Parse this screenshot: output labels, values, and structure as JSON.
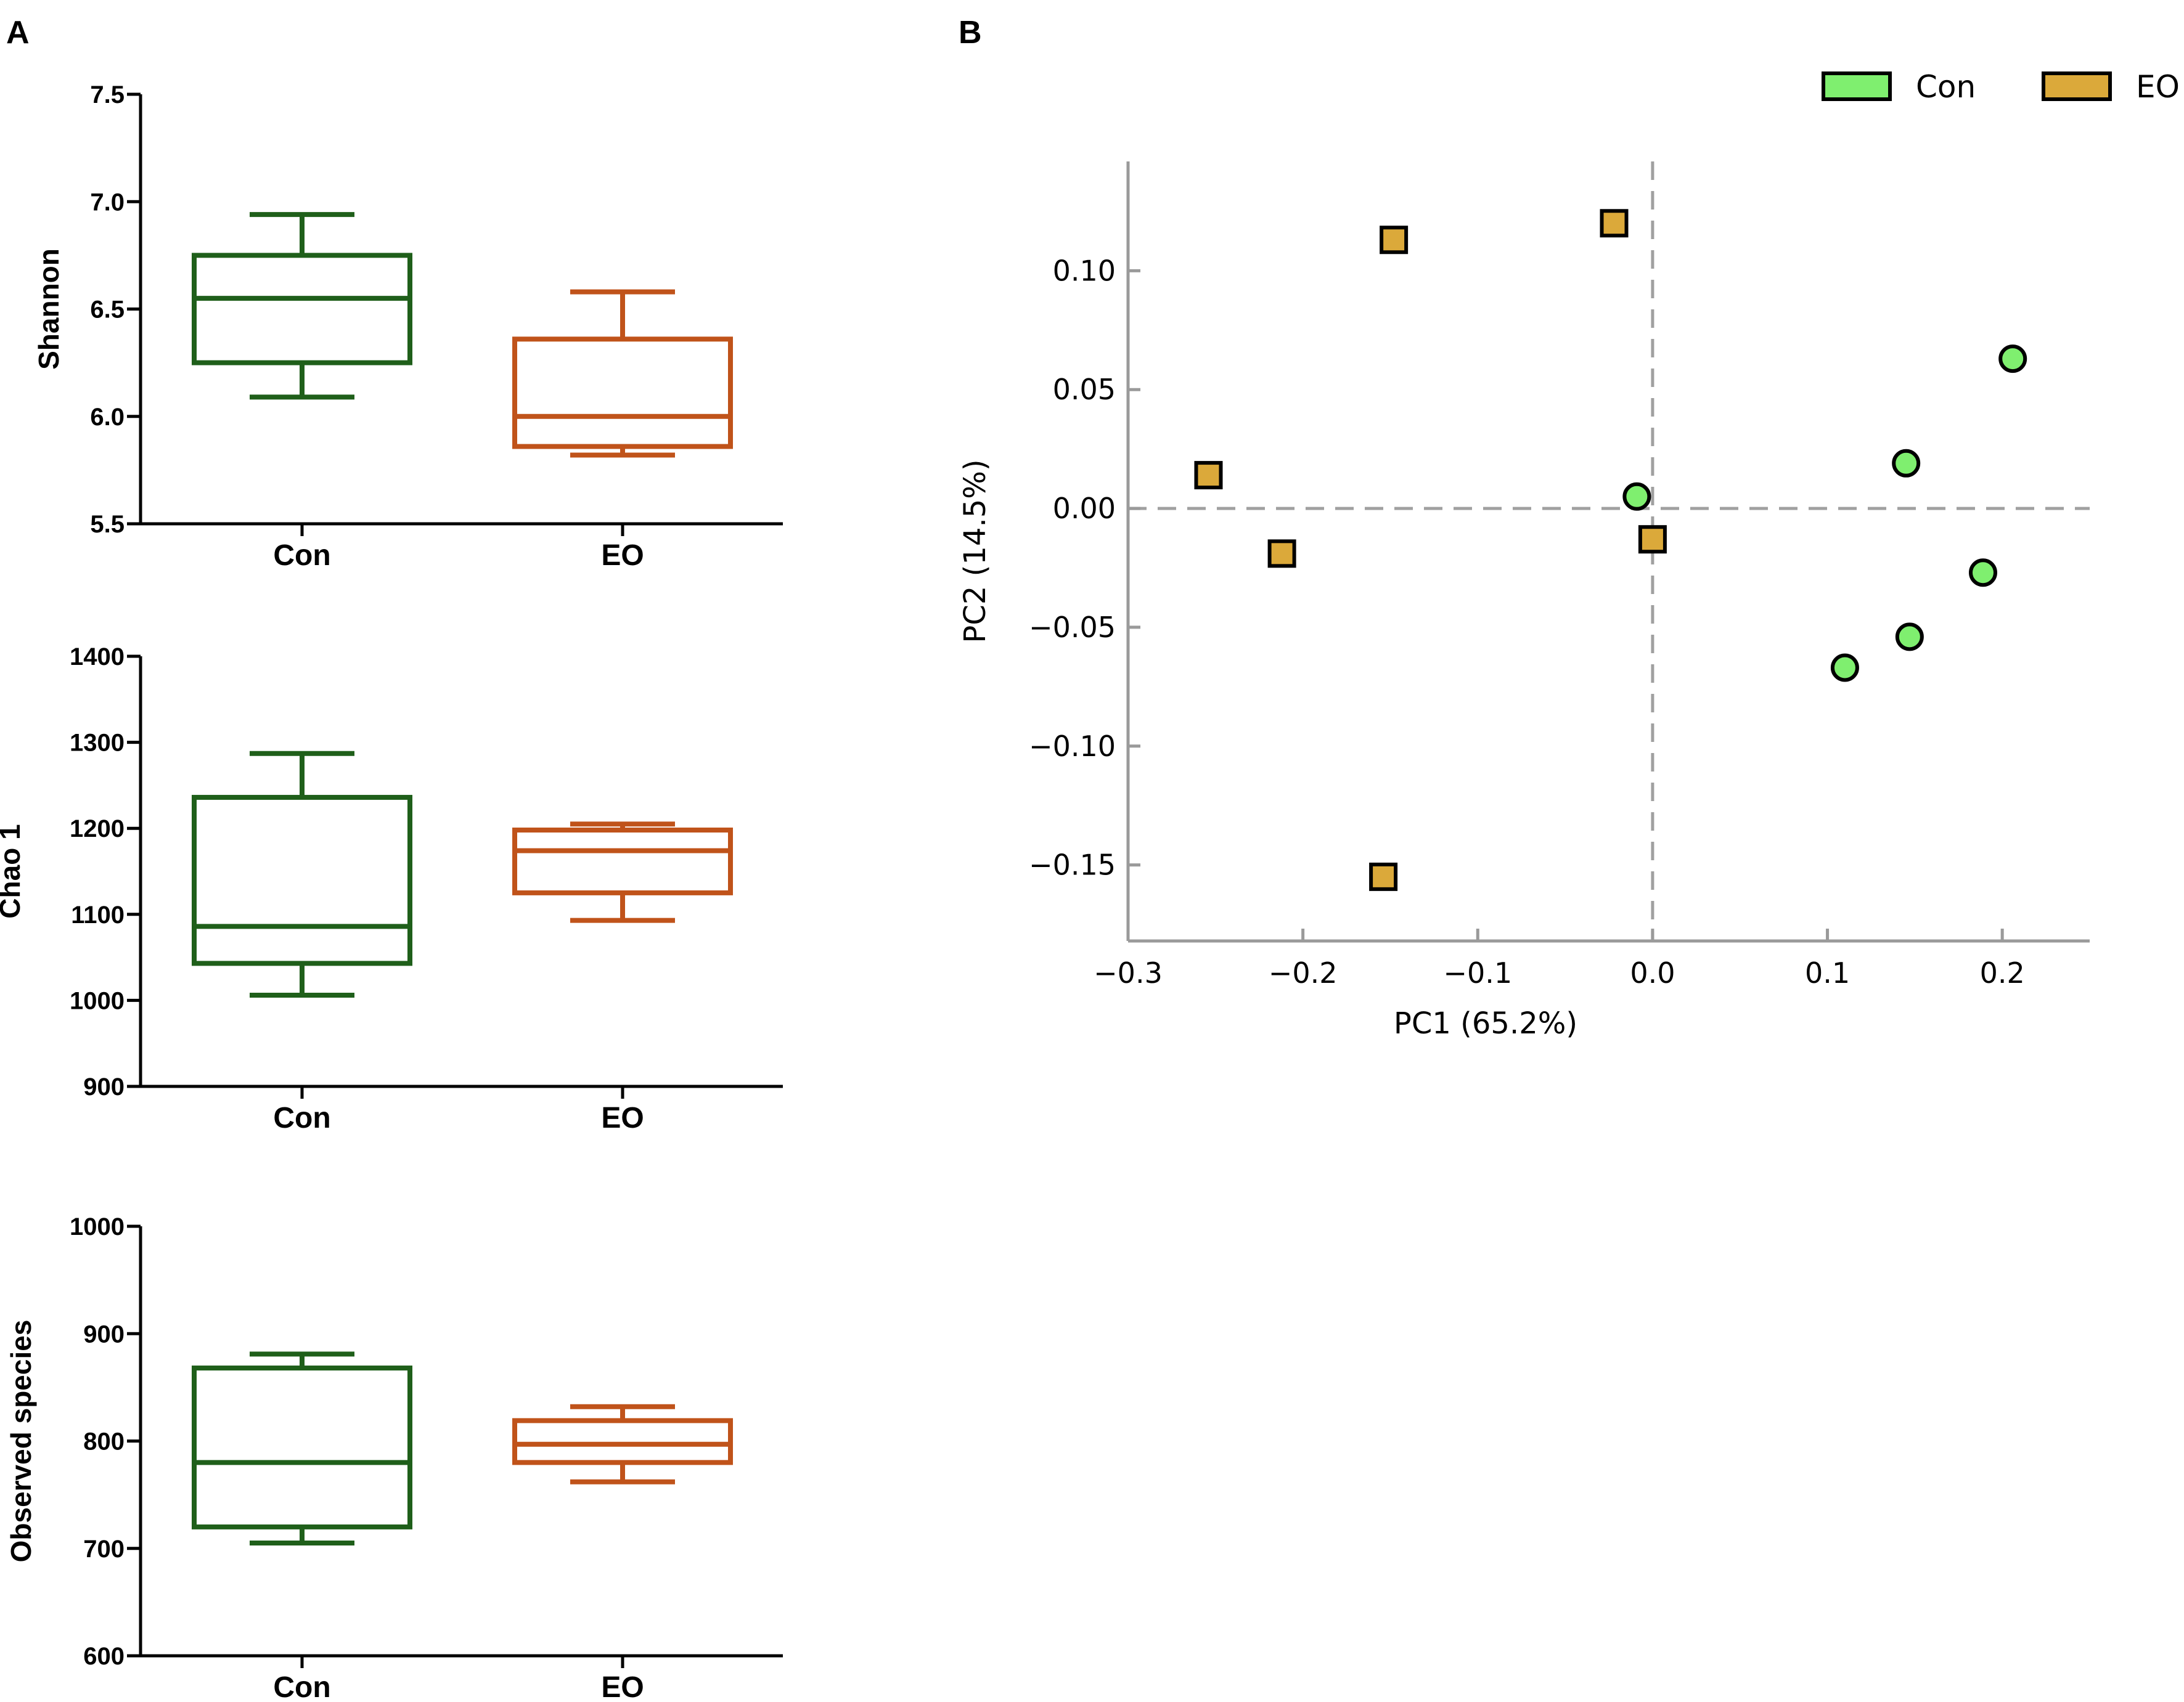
{
  "panels": {
    "a_label": "A",
    "b_label": "B"
  },
  "chart_data": [
    {
      "type": "box",
      "panel": "A",
      "ylabel": "Shannon",
      "categories": [
        "Con",
        "EO"
      ],
      "ylim": [
        5.5,
        7.5
      ],
      "yticks": [
        5.5,
        6.0,
        6.5,
        7.0,
        7.5
      ],
      "tick_labels": [
        "5.5",
        "6.0",
        "6.5",
        "7.0",
        "7.5"
      ],
      "boxes": [
        {
          "group": "Con",
          "min": 6.09,
          "q1": 6.25,
          "median": 6.55,
          "q3": 6.75,
          "max": 6.94,
          "color": "#1f5f1a"
        },
        {
          "group": "EO",
          "min": 5.82,
          "q1": 5.86,
          "median": 6.0,
          "q3": 6.36,
          "max": 6.58,
          "color": "#c0531a"
        }
      ]
    },
    {
      "type": "box",
      "panel": "A",
      "ylabel": "Chao 1",
      "categories": [
        "Con",
        "EO"
      ],
      "ylim": [
        900,
        1400
      ],
      "yticks": [
        900,
        1000,
        1100,
        1200,
        1300,
        1400
      ],
      "tick_labels": [
        "900",
        "1000",
        "1100",
        "1200",
        "1300",
        "1400"
      ],
      "boxes": [
        {
          "group": "Con",
          "min": 1006,
          "q1": 1043,
          "median": 1086,
          "q3": 1236,
          "max": 1287,
          "color": "#1f5f1a"
        },
        {
          "group": "EO",
          "min": 1093,
          "q1": 1125,
          "median": 1174,
          "q3": 1198,
          "max": 1205,
          "color": "#c0531a"
        }
      ]
    },
    {
      "type": "box",
      "panel": "A",
      "ylabel": "Observed species",
      "categories": [
        "Con",
        "EO"
      ],
      "ylim": [
        600,
        1000
      ],
      "yticks": [
        600,
        700,
        800,
        900,
        1000
      ],
      "tick_labels": [
        "600",
        "700",
        "800",
        "900",
        "1000"
      ],
      "boxes": [
        {
          "group": "Con",
          "min": 705,
          "q1": 720,
          "median": 780,
          "q3": 868,
          "max": 881,
          "color": "#1f5f1a"
        },
        {
          "group": "EO",
          "min": 762,
          "q1": 780,
          "median": 797,
          "q3": 819,
          "max": 832,
          "color": "#c0531a"
        }
      ]
    },
    {
      "type": "scatter",
      "panel": "B",
      "xlabel": "PC1 (65.2%)",
      "ylabel": "PC2 (14.5%)",
      "xlim": [
        -0.3,
        0.25
      ],
      "ylim": [
        -0.182,
        0.146
      ],
      "xticks": [
        -0.3,
        -0.2,
        -0.1,
        0.0,
        0.1,
        0.2
      ],
      "xtick_labels": [
        "−0.3",
        "−0.2",
        "−0.1",
        "0.0",
        "0.1",
        "0.2"
      ],
      "yticks": [
        -0.15,
        -0.1,
        -0.05,
        0.0,
        0.05,
        0.1
      ],
      "ytick_labels": [
        "−0.15",
        "−0.10",
        "−0.05",
        "0.00",
        "0.05",
        "0.10"
      ],
      "legend_position": "top-right",
      "series": [
        {
          "name": "Con",
          "marker": "circle",
          "color": "#7fef6f",
          "points": [
            [
              -0.009,
              0.005
            ],
            [
              0.145,
              0.019
            ],
            [
              0.206,
              0.063
            ],
            [
              0.189,
              -0.027
            ],
            [
              0.147,
              -0.054
            ],
            [
              0.11,
              -0.067
            ]
          ]
        },
        {
          "name": "EO",
          "marker": "square",
          "color": "#dba93a",
          "points": [
            [
              -0.148,
              0.113
            ],
            [
              -0.022,
              0.12
            ],
            [
              -0.254,
              0.014
            ],
            [
              -0.212,
              -0.019
            ],
            [
              0.0,
              -0.013
            ],
            [
              -0.154,
              -0.155
            ]
          ]
        }
      ]
    }
  ]
}
